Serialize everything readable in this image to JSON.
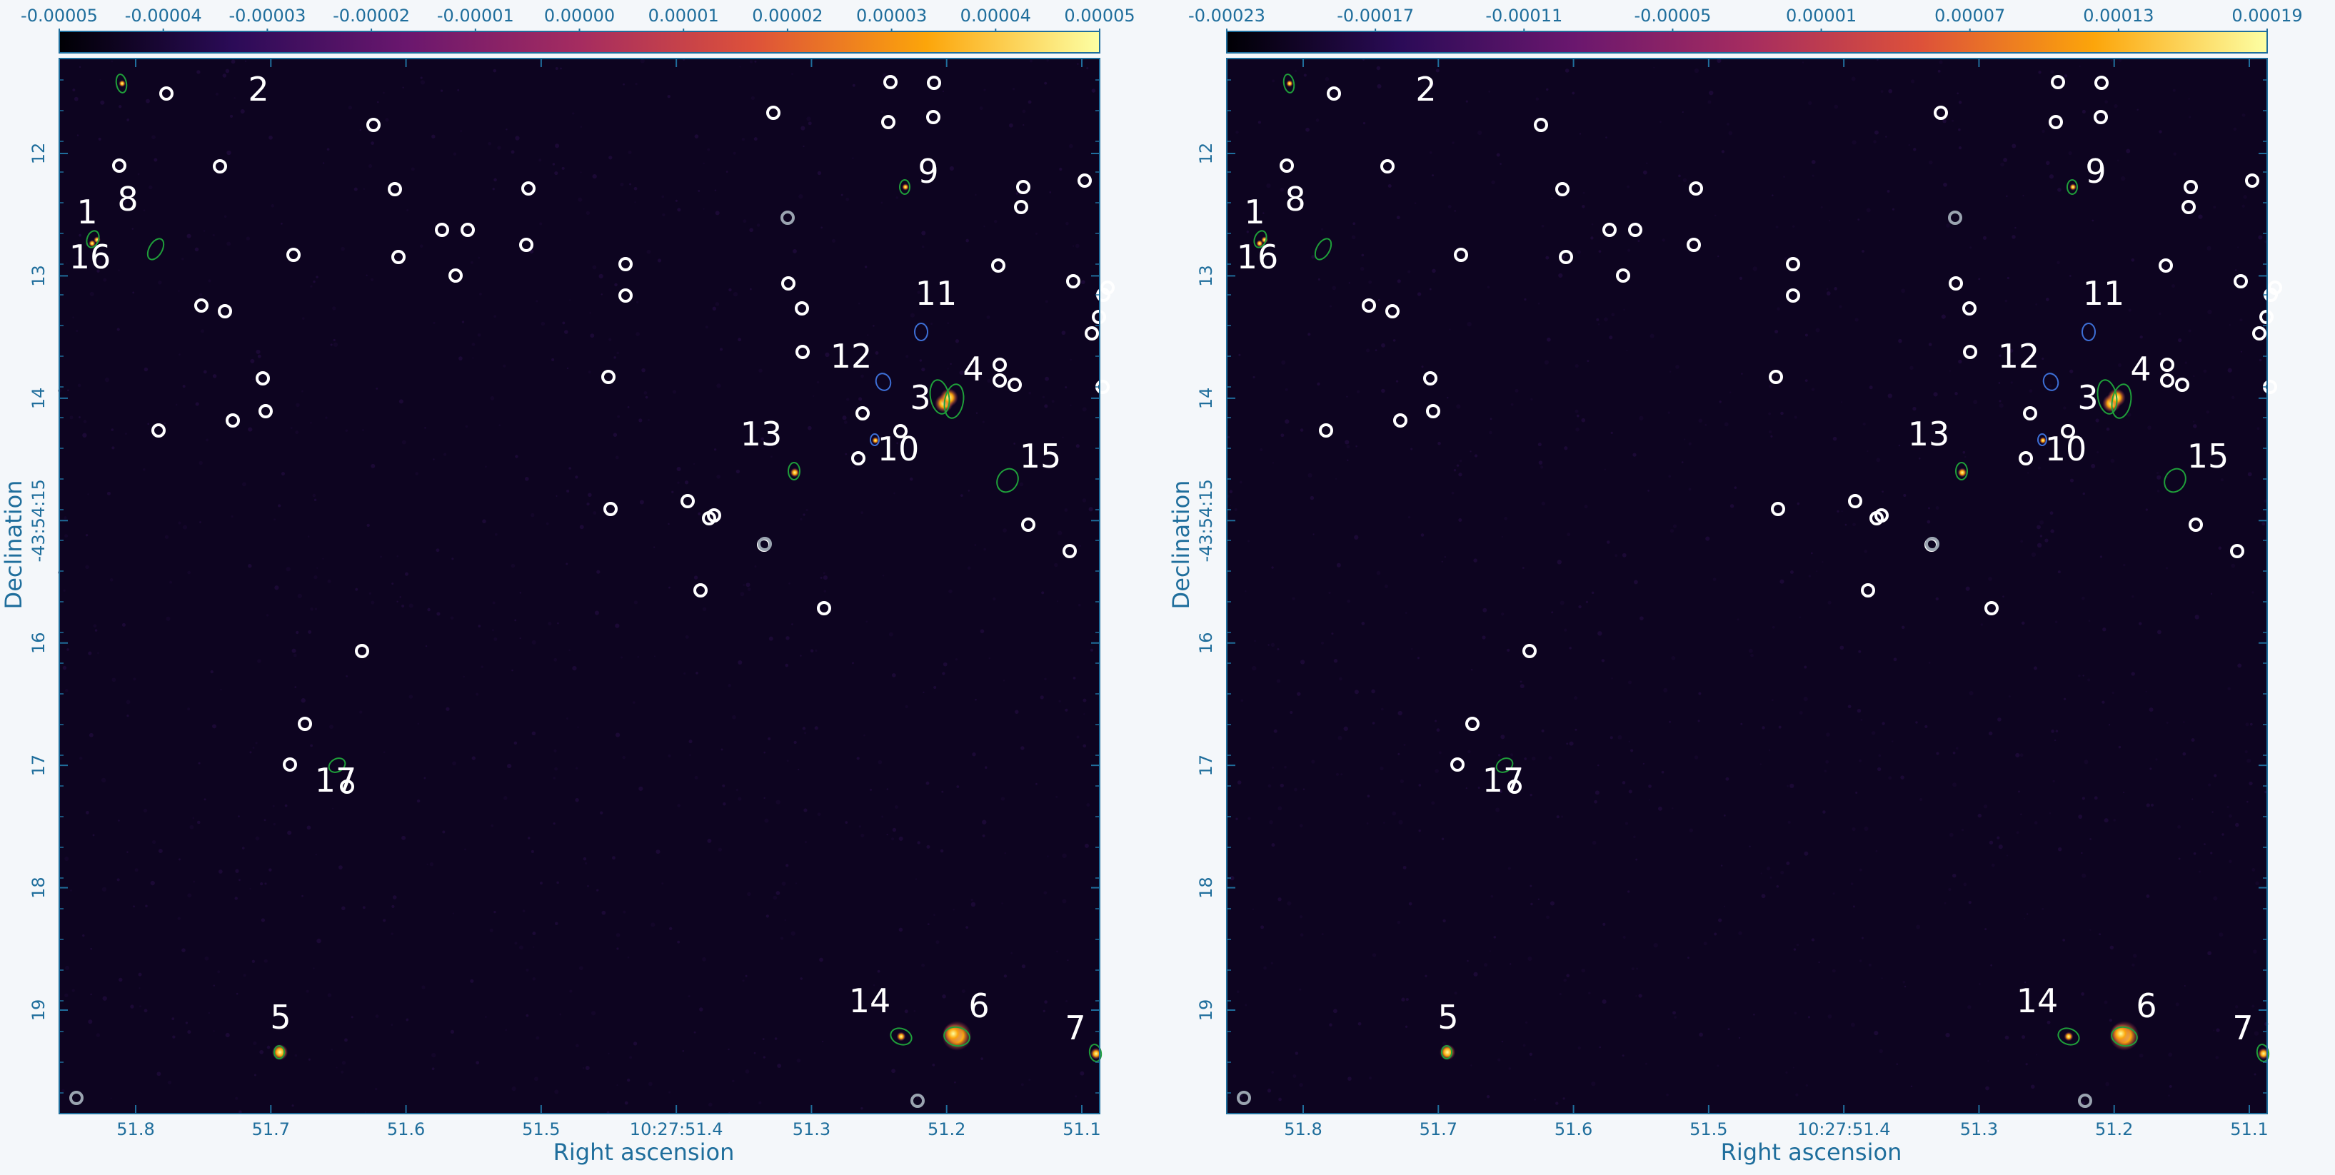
{
  "panels": [
    {
      "id": "left",
      "colorbar_ticks": [
        "-0.00005",
        "-0.00004",
        "-0.00003",
        "-0.00002",
        "-0.00001",
        "0.00000",
        "0.00001",
        "0.00002",
        "0.00003",
        "0.00004",
        "0.00005"
      ],
      "xlabel": "Right ascension",
      "ylabel": "Declination",
      "x_ticks": [
        "51.8",
        "51.7",
        "51.6",
        "51.5",
        "10:27:51.4",
        "51.3",
        "51.2",
        "51.1"
      ],
      "y_ticks": [
        "12",
        "13",
        "14",
        "-43:54:15",
        "16",
        "17",
        "18",
        "19"
      ]
    },
    {
      "id": "right",
      "colorbar_ticks": [
        "-0.00023",
        "-0.00017",
        "-0.00011",
        "-0.00005",
        "0.00001",
        "0.00007",
        "0.00013",
        "0.00019"
      ],
      "xlabel": "Right ascension",
      "ylabel": "Declination",
      "x_ticks": [
        "51.8",
        "51.7",
        "51.6",
        "51.5",
        "10:27:51.4",
        "51.3",
        "51.2",
        "51.1"
      ],
      "y_ticks": [
        "12",
        "13",
        "14",
        "-43:54:15",
        "16",
        "17",
        "18",
        "19"
      ]
    }
  ],
  "source_labels": [
    "1",
    "2",
    "3",
    "4",
    "5",
    "6",
    "7",
    "8",
    "9",
    "10",
    "11",
    "12",
    "13",
    "14",
    "15",
    "16",
    "17"
  ],
  "colors": {
    "axis": "#1f6e9c",
    "image_background": "#0d0420",
    "marker_white": "#ffffff",
    "marker_gray": "#9aa4b0",
    "region_green": "#1f9f3a",
    "region_blue": "#3d6fd6",
    "colormap": [
      "#000004",
      "#2b0b57",
      "#6a176e",
      "#a52c60",
      "#dd513a",
      "#fca50a",
      "#fcffa4"
    ]
  }
}
